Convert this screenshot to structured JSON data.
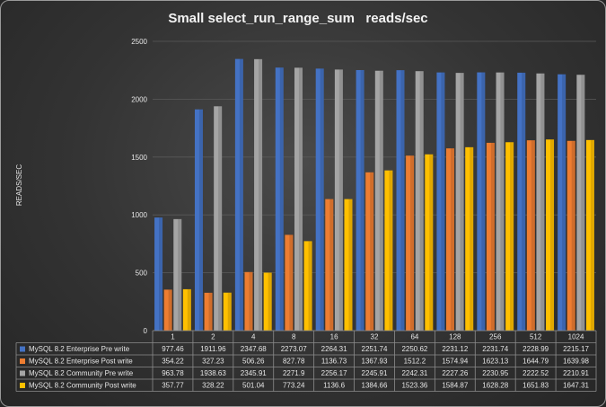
{
  "chart_data": {
    "type": "bar",
    "title": "Small select_run_range_sum   reads/sec",
    "ylabel": "READS/SEC",
    "ylim": [
      0,
      2500
    ],
    "yticks": [
      0,
      500,
      1000,
      1500,
      2000,
      2500
    ],
    "categories": [
      "1",
      "2",
      "4",
      "8",
      "16",
      "32",
      "64",
      "128",
      "256",
      "512",
      "1024"
    ],
    "grid": true,
    "legend": "data-table-below",
    "series": [
      {
        "name": "MySQL 8.2 Enterprise Pre write",
        "color": "#4472C4",
        "values": [
          977.46,
          1911.96,
          2347.68,
          2273.07,
          2264.31,
          2251.74,
          2250.62,
          2231.12,
          2231.74,
          2228.99,
          2215.17
        ],
        "labels": [
          "977.46",
          "1911.96",
          "2347.68",
          "2273.07",
          "2264.31",
          "2251.74",
          "2250.62",
          "2231.12",
          "2231.74",
          "2228.99",
          "2215.17"
        ]
      },
      {
        "name": "MySQL 8.2 Enterprise Post write",
        "color": "#ED7D31",
        "values": [
          354.22,
          327.23,
          506.26,
          827.78,
          1136.73,
          1367.93,
          1512.2,
          1574.94,
          1623.13,
          1644.79,
          1639.98
        ],
        "labels": [
          "354.22",
          "327.23",
          "506.26",
          "827.78",
          "1136.73",
          "1367.93",
          "1512.2",
          "1574.94",
          "1623.13",
          "1644.79",
          "1639.98"
        ]
      },
      {
        "name": "MySQL 8.2 Community Pre write",
        "color": "#A5A5A5",
        "values": [
          963.78,
          1938.63,
          2345.91,
          2271.9,
          2256.17,
          2245.91,
          2242.31,
          2227.26,
          2230.95,
          2222.52,
          2210.91
        ],
        "labels": [
          "963.78",
          "1938.63",
          "2345.91",
          "2271.9",
          "2256.17",
          "2245.91",
          "2242.31",
          "2227.26",
          "2230.95",
          "2222.52",
          "2210.91"
        ]
      },
      {
        "name": "MySQL 8.2 Community Post write",
        "color": "#FFC000",
        "values": [
          357.77,
          328.22,
          501.04,
          773.24,
          1136.6,
          1384.66,
          1523.36,
          1584.87,
          1628.28,
          1651.83,
          1647.31
        ],
        "labels": [
          "357.77",
          "328.22",
          "501.04",
          "773.24",
          "1136.6",
          "1384.66",
          "1523.36",
          "1584.87",
          "1628.28",
          "1651.83",
          "1647.31"
        ]
      }
    ]
  }
}
